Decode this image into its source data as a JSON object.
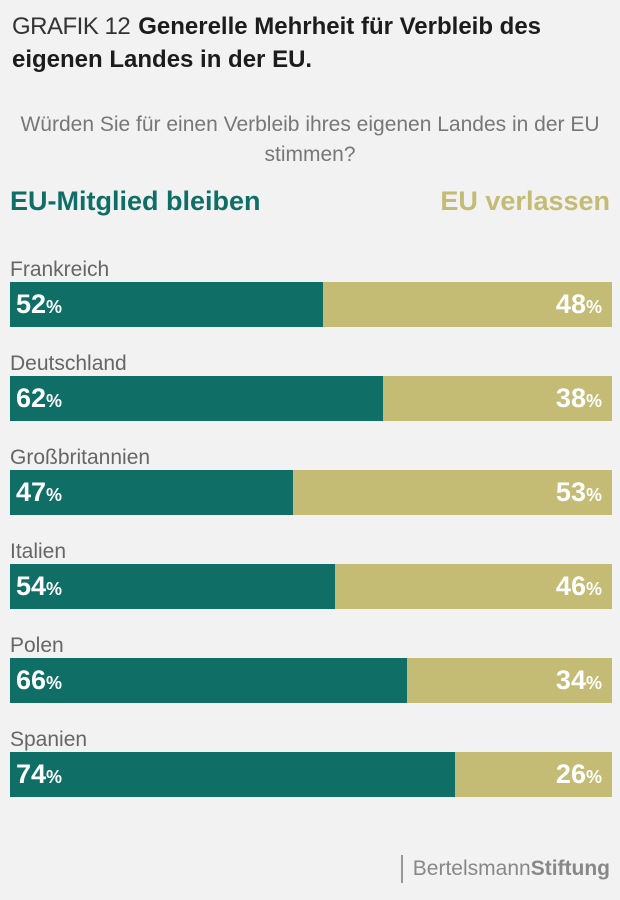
{
  "header": {
    "prefix": "GRAFIK 12",
    "title": "Generelle Mehrheit für Verbleib des eigenen Landes in der EU."
  },
  "subtitle": "Würden Sie für einen Verbleib ihres eigenen Landes in der EU stimmen?",
  "footer": {
    "brand_light": "Bertelsmann",
    "brand_bold": "Stiftung"
  },
  "chart_data": {
    "type": "bar",
    "stacked": true,
    "orientation": "horizontal",
    "categories": [
      "Frankreich",
      "Deutschland",
      "Großbritannien",
      "Italien",
      "Polen",
      "Spanien"
    ],
    "series": [
      {
        "name": "EU-Mitglied bleiben",
        "values": [
          52,
          62,
          47,
          54,
          66,
          74
        ],
        "color": "#0f6e66"
      },
      {
        "name": "EU verlassen",
        "values": [
          48,
          38,
          53,
          46,
          34,
          26
        ],
        "color": "#c4bb75"
      }
    ],
    "unit": "%",
    "xlim": [
      0,
      100
    ],
    "legend": "top"
  }
}
